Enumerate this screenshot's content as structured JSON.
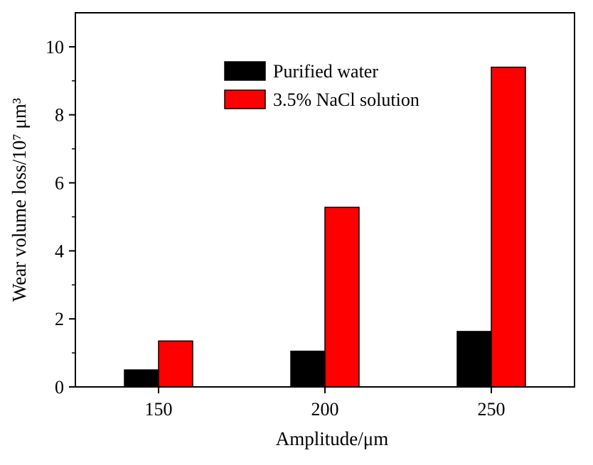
{
  "chart_data": {
    "type": "bar",
    "categories": [
      "150",
      "200",
      "250"
    ],
    "series": [
      {
        "name": "Purified water",
        "values": [
          0.5,
          1.05,
          1.63
        ],
        "color": "#000000"
      },
      {
        "name": "3.5% NaCl solution",
        "values": [
          1.35,
          5.28,
          9.4
        ],
        "color": "#ff0000"
      }
    ],
    "xlabel": "Amplitude/μm",
    "ylabel": "Wear volume loss/10⁷ μm³",
    "ylim": [
      0,
      11
    ],
    "yticks": [
      0,
      2,
      4,
      6,
      8,
      10
    ],
    "grid": false,
    "legend_position": "top-center"
  }
}
